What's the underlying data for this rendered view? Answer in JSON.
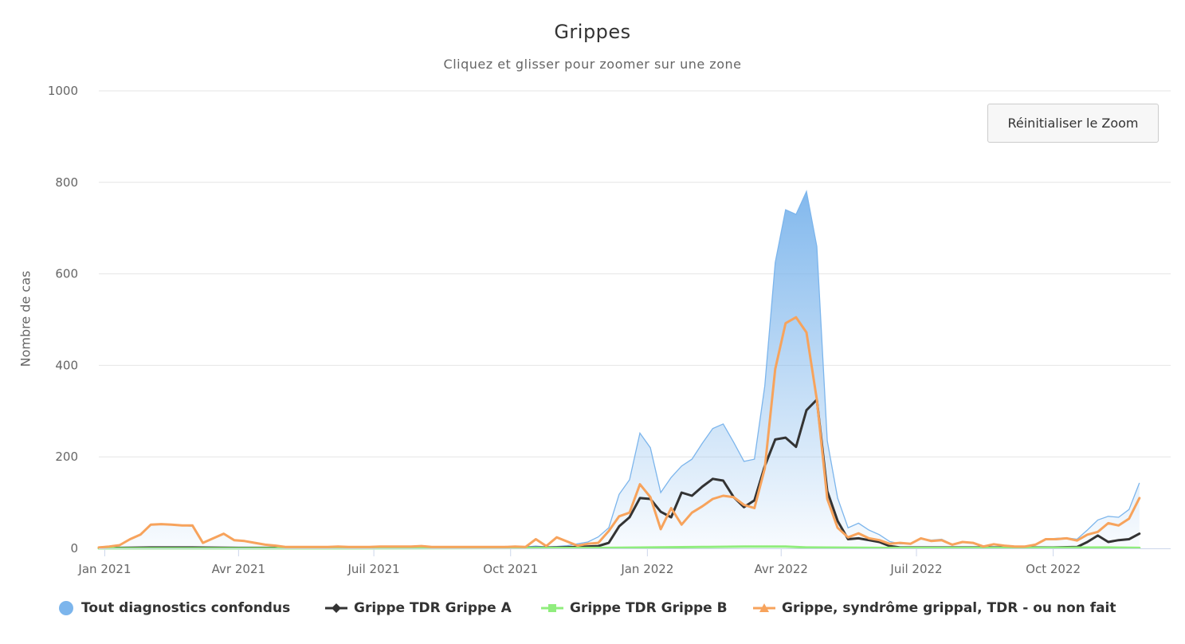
{
  "chart_data": {
    "type": "area",
    "title": "Grippes",
    "subtitle": "Cliquez et glisser pour zoomer sur une zone",
    "ylabel": "Nombre de cas",
    "xlabel": "",
    "ylim": [
      0,
      1000
    ],
    "yticks": [
      "0",
      "200",
      "400",
      "600",
      "800",
      "1000"
    ],
    "xticks": [
      {
        "label": "Jan 2021",
        "date": "2021-01-01"
      },
      {
        "label": "Avr 2021",
        "date": "2021-04-01"
      },
      {
        "label": "Juil 2021",
        "date": "2021-07-01"
      },
      {
        "label": "Oct 2021",
        "date": "2021-10-01"
      },
      {
        "label": "Jan 2022",
        "date": "2022-01-01"
      },
      {
        "label": "Avr 2022",
        "date": "2022-04-01"
      },
      {
        "label": "Juil 2022",
        "date": "2022-07-01"
      },
      {
        "label": "Oct 2022",
        "date": "2022-10-01"
      }
    ],
    "xrange": [
      "2020-12-28",
      "2022-12-19"
    ],
    "grid": true,
    "legend_position": "bottom",
    "series": [
      {
        "name": "Tout diagnostics confondus",
        "type": "area",
        "color": "#7cb5ec",
        "points": [
          [
            "2020-12-28",
            3
          ],
          [
            "2021-01-04",
            5
          ],
          [
            "2021-01-11",
            8
          ],
          [
            "2021-01-18",
            20
          ],
          [
            "2021-01-25",
            30
          ],
          [
            "2021-02-01",
            52
          ],
          [
            "2021-02-08",
            53
          ],
          [
            "2021-02-15",
            52
          ],
          [
            "2021-02-22",
            50
          ],
          [
            "2021-03-01",
            48
          ],
          [
            "2021-03-08",
            12
          ],
          [
            "2021-03-15",
            22
          ],
          [
            "2021-03-22",
            32
          ],
          [
            "2021-03-29",
            18
          ],
          [
            "2021-04-05",
            16
          ],
          [
            "2021-04-12",
            12
          ],
          [
            "2021-04-19",
            8
          ],
          [
            "2021-04-26",
            6
          ],
          [
            "2021-05-03",
            3
          ],
          [
            "2021-05-10",
            3
          ],
          [
            "2021-05-17",
            3
          ],
          [
            "2021-05-24",
            3
          ],
          [
            "2021-05-31",
            3
          ],
          [
            "2021-06-07",
            4
          ],
          [
            "2021-06-14",
            3
          ],
          [
            "2021-06-21",
            3
          ],
          [
            "2021-06-28",
            3
          ],
          [
            "2021-07-05",
            4
          ],
          [
            "2021-07-12",
            4
          ],
          [
            "2021-07-19",
            4
          ],
          [
            "2021-07-26",
            4
          ],
          [
            "2021-08-02",
            5
          ],
          [
            "2021-08-09",
            3
          ],
          [
            "2021-08-16",
            3
          ],
          [
            "2021-08-23",
            3
          ],
          [
            "2021-08-30",
            3
          ],
          [
            "2021-09-06",
            3
          ],
          [
            "2021-09-13",
            3
          ],
          [
            "2021-09-20",
            3
          ],
          [
            "2021-09-27",
            3
          ],
          [
            "2021-10-04",
            4
          ],
          [
            "2021-10-11",
            3
          ],
          [
            "2021-10-18",
            5
          ],
          [
            "2021-10-25",
            3
          ],
          [
            "2021-11-01",
            4
          ],
          [
            "2021-11-08",
            6
          ],
          [
            "2021-11-15",
            10
          ],
          [
            "2021-11-22",
            14
          ],
          [
            "2021-11-29",
            25
          ],
          [
            "2021-12-06",
            45
          ],
          [
            "2021-12-13",
            118
          ],
          [
            "2021-12-20",
            150
          ],
          [
            "2021-12-27",
            252
          ],
          [
            "2022-01-03",
            220
          ],
          [
            "2022-01-10",
            122
          ],
          [
            "2022-01-17",
            155
          ],
          [
            "2022-01-24",
            180
          ],
          [
            "2022-01-31",
            195
          ],
          [
            "2022-02-07",
            230
          ],
          [
            "2022-02-14",
            262
          ],
          [
            "2022-02-21",
            272
          ],
          [
            "2022-02-28",
            232
          ],
          [
            "2022-03-07",
            190
          ],
          [
            "2022-03-14",
            195
          ],
          [
            "2022-03-21",
            355
          ],
          [
            "2022-03-28",
            625
          ],
          [
            "2022-04-04",
            740
          ],
          [
            "2022-04-11",
            730
          ],
          [
            "2022-04-18",
            780
          ],
          [
            "2022-04-25",
            660
          ],
          [
            "2022-05-02",
            235
          ],
          [
            "2022-05-09",
            110
          ],
          [
            "2022-05-16",
            45
          ],
          [
            "2022-05-23",
            55
          ],
          [
            "2022-05-30",
            40
          ],
          [
            "2022-06-06",
            30
          ],
          [
            "2022-06-13",
            15
          ],
          [
            "2022-06-20",
            10
          ],
          [
            "2022-06-27",
            10
          ],
          [
            "2022-07-04",
            22
          ],
          [
            "2022-07-11",
            18
          ],
          [
            "2022-07-18",
            20
          ],
          [
            "2022-07-25",
            9
          ],
          [
            "2022-08-01",
            14
          ],
          [
            "2022-08-08",
            13
          ],
          [
            "2022-08-15",
            5
          ],
          [
            "2022-08-22",
            9
          ],
          [
            "2022-08-29",
            7
          ],
          [
            "2022-09-05",
            5
          ],
          [
            "2022-09-12",
            5
          ],
          [
            "2022-09-19",
            8
          ],
          [
            "2022-09-26",
            20
          ],
          [
            "2022-10-03",
            22
          ],
          [
            "2022-10-10",
            23
          ],
          [
            "2022-10-17",
            20
          ],
          [
            "2022-10-24",
            40
          ],
          [
            "2022-10-31",
            62
          ],
          [
            "2022-11-07",
            70
          ],
          [
            "2022-11-14",
            68
          ],
          [
            "2022-11-21",
            85
          ],
          [
            "2022-11-28",
            143
          ]
        ]
      },
      {
        "name": "Grippe TDR Grippe A",
        "type": "line",
        "color": "#333333",
        "points": [
          [
            "2020-12-28",
            1
          ],
          [
            "2021-01-11",
            1
          ],
          [
            "2021-02-01",
            2
          ],
          [
            "2021-03-01",
            2
          ],
          [
            "2021-04-01",
            1
          ],
          [
            "2021-06-01",
            1
          ],
          [
            "2021-08-01",
            1
          ],
          [
            "2021-10-01",
            1
          ],
          [
            "2021-11-01",
            2
          ],
          [
            "2021-11-15",
            3
          ],
          [
            "2021-11-29",
            5
          ],
          [
            "2021-12-06",
            12
          ],
          [
            "2021-12-13",
            48
          ],
          [
            "2021-12-20",
            68
          ],
          [
            "2021-12-27",
            110
          ],
          [
            "2022-01-03",
            108
          ],
          [
            "2022-01-10",
            80
          ],
          [
            "2022-01-17",
            68
          ],
          [
            "2022-01-24",
            122
          ],
          [
            "2022-01-31",
            115
          ],
          [
            "2022-02-07",
            135
          ],
          [
            "2022-02-14",
            152
          ],
          [
            "2022-02-21",
            148
          ],
          [
            "2022-02-28",
            112
          ],
          [
            "2022-03-07",
            90
          ],
          [
            "2022-03-14",
            105
          ],
          [
            "2022-03-21",
            180
          ],
          [
            "2022-03-28",
            238
          ],
          [
            "2022-04-04",
            242
          ],
          [
            "2022-04-11",
            222
          ],
          [
            "2022-04-18",
            302
          ],
          [
            "2022-04-25",
            325
          ],
          [
            "2022-05-02",
            125
          ],
          [
            "2022-05-09",
            60
          ],
          [
            "2022-05-16",
            20
          ],
          [
            "2022-05-23",
            22
          ],
          [
            "2022-05-30",
            18
          ],
          [
            "2022-06-06",
            14
          ],
          [
            "2022-06-13",
            5
          ],
          [
            "2022-06-20",
            2
          ],
          [
            "2022-07-01",
            2
          ],
          [
            "2022-08-01",
            2
          ],
          [
            "2022-09-01",
            2
          ],
          [
            "2022-10-01",
            2
          ],
          [
            "2022-10-17",
            3
          ],
          [
            "2022-10-24",
            14
          ],
          [
            "2022-10-31",
            28
          ],
          [
            "2022-11-07",
            14
          ],
          [
            "2022-11-14",
            18
          ],
          [
            "2022-11-21",
            20
          ],
          [
            "2022-11-28",
            32
          ]
        ]
      },
      {
        "name": "Grippe TDR Grippe B",
        "type": "line",
        "color": "#90ed7d",
        "points": [
          [
            "2020-12-28",
            0
          ],
          [
            "2021-06-01",
            0
          ],
          [
            "2021-12-01",
            1
          ],
          [
            "2022-01-03",
            2
          ],
          [
            "2022-02-07",
            3
          ],
          [
            "2022-03-07",
            4
          ],
          [
            "2022-04-04",
            4
          ],
          [
            "2022-04-18",
            2
          ],
          [
            "2022-06-06",
            1
          ],
          [
            "2022-09-01",
            1
          ],
          [
            "2022-11-07",
            2
          ],
          [
            "2022-11-28",
            1
          ]
        ]
      },
      {
        "name": "Grippe, syndrôme grippal, TDR - ou non fait",
        "type": "line",
        "color": "#f7a35c",
        "points": [
          [
            "2020-12-28",
            2
          ],
          [
            "2021-01-04",
            4
          ],
          [
            "2021-01-11",
            7
          ],
          [
            "2021-01-18",
            20
          ],
          [
            "2021-01-25",
            30
          ],
          [
            "2021-02-01",
            52
          ],
          [
            "2021-02-08",
            53
          ],
          [
            "2021-02-15",
            52
          ],
          [
            "2021-02-22",
            50
          ],
          [
            "2021-03-01",
            50
          ],
          [
            "2021-03-08",
            12
          ],
          [
            "2021-03-15",
            22
          ],
          [
            "2021-03-22",
            32
          ],
          [
            "2021-03-29",
            18
          ],
          [
            "2021-04-05",
            16
          ],
          [
            "2021-04-12",
            12
          ],
          [
            "2021-04-19",
            8
          ],
          [
            "2021-04-26",
            6
          ],
          [
            "2021-05-03",
            3
          ],
          [
            "2021-05-10",
            3
          ],
          [
            "2021-05-17",
            3
          ],
          [
            "2021-05-24",
            3
          ],
          [
            "2021-05-31",
            3
          ],
          [
            "2021-06-07",
            4
          ],
          [
            "2021-06-14",
            3
          ],
          [
            "2021-06-21",
            3
          ],
          [
            "2021-06-28",
            3
          ],
          [
            "2021-07-05",
            4
          ],
          [
            "2021-07-12",
            4
          ],
          [
            "2021-07-19",
            4
          ],
          [
            "2021-07-26",
            4
          ],
          [
            "2021-08-02",
            5
          ],
          [
            "2021-08-09",
            3
          ],
          [
            "2021-08-16",
            3
          ],
          [
            "2021-08-23",
            3
          ],
          [
            "2021-08-30",
            3
          ],
          [
            "2021-09-06",
            3
          ],
          [
            "2021-09-13",
            3
          ],
          [
            "2021-09-20",
            3
          ],
          [
            "2021-09-27",
            3
          ],
          [
            "2021-10-04",
            4
          ],
          [
            "2021-10-11",
            3
          ],
          [
            "2021-10-18",
            20
          ],
          [
            "2021-10-25",
            5
          ],
          [
            "2021-11-01",
            24
          ],
          [
            "2021-11-08",
            15
          ],
          [
            "2021-11-15",
            6
          ],
          [
            "2021-11-22",
            10
          ],
          [
            "2021-11-29",
            12
          ],
          [
            "2021-12-06",
            38
          ],
          [
            "2021-12-13",
            70
          ],
          [
            "2021-12-20",
            78
          ],
          [
            "2021-12-27",
            140
          ],
          [
            "2022-01-03",
            112
          ],
          [
            "2022-01-10",
            42
          ],
          [
            "2022-01-17",
            88
          ],
          [
            "2022-01-24",
            52
          ],
          [
            "2022-01-31",
            78
          ],
          [
            "2022-02-07",
            92
          ],
          [
            "2022-02-14",
            108
          ],
          [
            "2022-02-21",
            115
          ],
          [
            "2022-02-28",
            112
          ],
          [
            "2022-03-07",
            95
          ],
          [
            "2022-03-14",
            88
          ],
          [
            "2022-03-21",
            175
          ],
          [
            "2022-03-28",
            392
          ],
          [
            "2022-04-04",
            492
          ],
          [
            "2022-04-11",
            505
          ],
          [
            "2022-04-18",
            472
          ],
          [
            "2022-04-25",
            325
          ],
          [
            "2022-05-02",
            108
          ],
          [
            "2022-05-09",
            45
          ],
          [
            "2022-05-16",
            24
          ],
          [
            "2022-05-23",
            33
          ],
          [
            "2022-05-30",
            22
          ],
          [
            "2022-06-06",
            18
          ],
          [
            "2022-06-13",
            10
          ],
          [
            "2022-06-20",
            12
          ],
          [
            "2022-06-27",
            10
          ],
          [
            "2022-07-04",
            22
          ],
          [
            "2022-07-11",
            16
          ],
          [
            "2022-07-18",
            18
          ],
          [
            "2022-07-25",
            8
          ],
          [
            "2022-08-01",
            14
          ],
          [
            "2022-08-08",
            12
          ],
          [
            "2022-08-15",
            4
          ],
          [
            "2022-08-22",
            9
          ],
          [
            "2022-08-29",
            6
          ],
          [
            "2022-09-05",
            4
          ],
          [
            "2022-09-12",
            4
          ],
          [
            "2022-09-19",
            8
          ],
          [
            "2022-09-26",
            20
          ],
          [
            "2022-10-03",
            20
          ],
          [
            "2022-10-10",
            22
          ],
          [
            "2022-10-17",
            17
          ],
          [
            "2022-10-24",
            30
          ],
          [
            "2022-10-31",
            36
          ],
          [
            "2022-11-07",
            55
          ],
          [
            "2022-11-14",
            50
          ],
          [
            "2022-11-21",
            65
          ],
          [
            "2022-11-28",
            110
          ]
        ]
      }
    ]
  },
  "zoom": {
    "reset_label": "Réinitialiser le Zoom"
  },
  "legend": {
    "items": [
      {
        "label": "Tout diagnostics confondus",
        "color": "#7cb5ec",
        "icon": "circle-icon"
      },
      {
        "label": "Grippe TDR Grippe A",
        "color": "#333333",
        "icon": "diamond-icon"
      },
      {
        "label": "Grippe TDR Grippe B",
        "color": "#90ed7d",
        "icon": "square-icon"
      },
      {
        "label": "Grippe, syndrôme grippal, TDR - ou non fait",
        "color": "#f7a35c",
        "icon": "triangle-icon"
      }
    ]
  }
}
